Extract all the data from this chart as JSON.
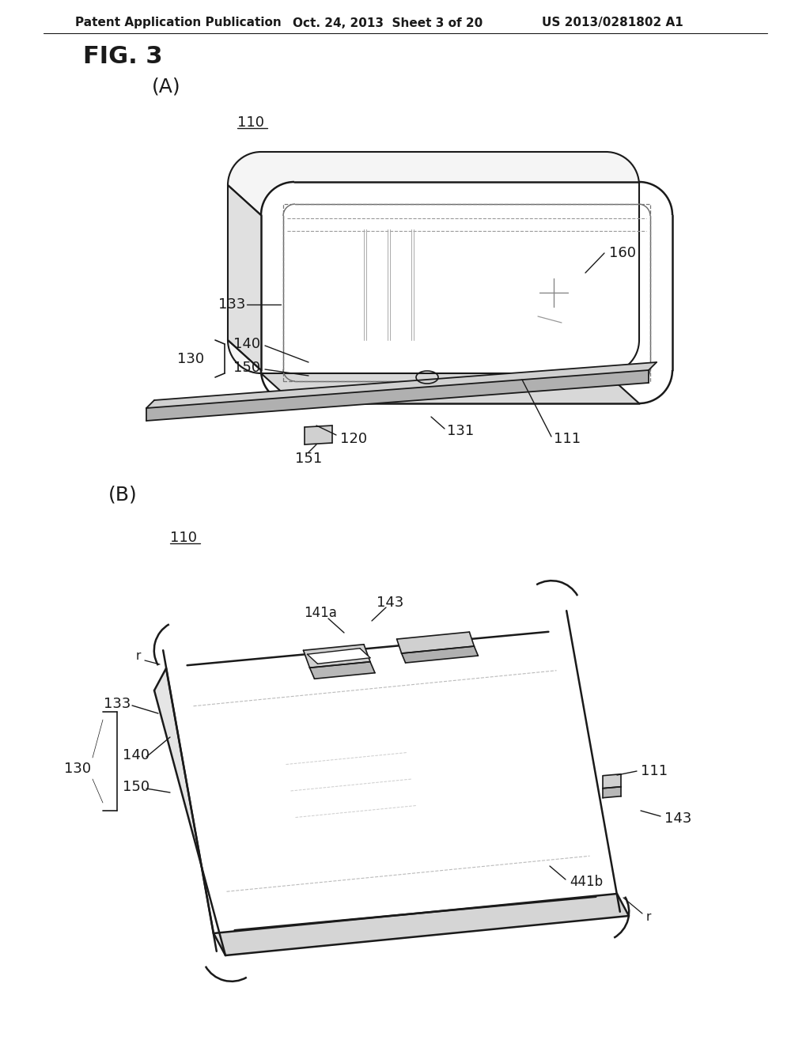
{
  "bg_color": "#ffffff",
  "line_color": "#1a1a1a",
  "text_color": "#1a1a1a",
  "header_left": "Patent Application Publication",
  "header_center": "Oct. 24, 2013  Sheet 3 of 20",
  "header_right": "US 2013/0281802 A1",
  "fig_label": "FIG. 3",
  "sub_A_label": "(A)",
  "sub_B_label": "(B)",
  "header_fontsize": 11,
  "fig_fontsize": 22,
  "sub_fontsize": 18,
  "ref_fontsize": 13
}
